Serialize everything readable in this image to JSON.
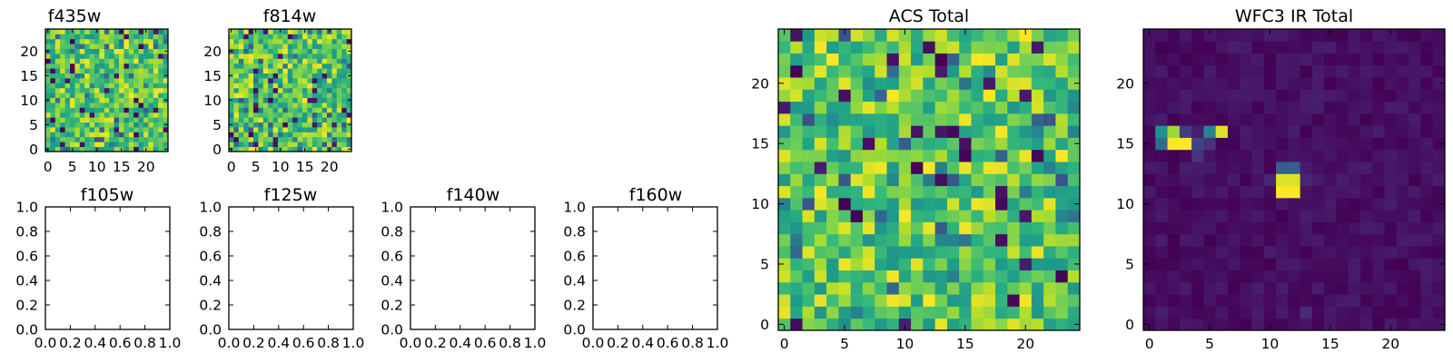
{
  "chart_data": [
    {
      "id": "f435w",
      "type": "heatmap",
      "title": "f435w",
      "grid": [
        25,
        25
      ],
      "xlim": [
        -0.5,
        24.5
      ],
      "ylim": [
        -0.5,
        24.5
      ],
      "xticks": [
        0,
        5,
        10,
        15,
        20
      ],
      "yticks": [
        0,
        5,
        10,
        15,
        20
      ],
      "colormap": "viridis",
      "pattern": "noise",
      "seed": 11
    },
    {
      "id": "f814w",
      "type": "heatmap",
      "title": "f814w",
      "grid": [
        25,
        25
      ],
      "xlim": [
        -0.5,
        24.5
      ],
      "ylim": [
        -0.5,
        24.5
      ],
      "xticks": [
        0,
        5,
        10,
        15,
        20
      ],
      "yticks": [
        0,
        5,
        10,
        15,
        20
      ],
      "colormap": "viridis",
      "pattern": "noise",
      "seed": 23
    },
    {
      "id": "f105w",
      "type": "empty",
      "title": "f105w",
      "xlim": [
        0,
        1
      ],
      "ylim": [
        0,
        1
      ],
      "xticks": [
        "0.0",
        "0.2",
        "0.4",
        "0.6",
        "0.8",
        "1.0"
      ],
      "yticks": [
        "0.0",
        "0.2",
        "0.4",
        "0.6",
        "0.8",
        "1.0"
      ]
    },
    {
      "id": "f125w",
      "type": "empty",
      "title": "f125w",
      "xlim": [
        0,
        1
      ],
      "ylim": [
        0,
        1
      ],
      "xticks": [
        "0.0",
        "0.2",
        "0.4",
        "0.6",
        "0.8",
        "1.0"
      ],
      "yticks": [
        "0.0",
        "0.2",
        "0.4",
        "0.6",
        "0.8",
        "1.0"
      ]
    },
    {
      "id": "f140w",
      "type": "empty",
      "title": "f140w",
      "xlim": [
        0,
        1
      ],
      "ylim": [
        0,
        1
      ],
      "xticks": [
        "0.0",
        "0.2",
        "0.4",
        "0.6",
        "0.8",
        "1.0"
      ],
      "yticks": [
        "0.0",
        "0.2",
        "0.4",
        "0.6",
        "0.8",
        "1.0"
      ]
    },
    {
      "id": "f160w",
      "type": "empty",
      "title": "f160w",
      "xlim": [
        0,
        1
      ],
      "ylim": [
        0,
        1
      ],
      "xticks": [
        "0.0",
        "0.2",
        "0.4",
        "0.6",
        "0.8",
        "1.0"
      ],
      "yticks": [
        "0.0",
        "0.2",
        "0.4",
        "0.6",
        "0.8",
        "1.0"
      ]
    },
    {
      "id": "acs-total",
      "type": "heatmap",
      "title": "ACS Total",
      "grid": [
        25,
        25
      ],
      "xlim": [
        -0.5,
        24.5
      ],
      "ylim": [
        -0.5,
        24.5
      ],
      "xticks": [
        0,
        5,
        10,
        15,
        20
      ],
      "yticks": [
        0,
        5,
        10,
        15,
        20
      ],
      "colormap": "viridis",
      "pattern": "noise",
      "seed": 47
    },
    {
      "id": "wfc3-ir-total",
      "type": "heatmap",
      "title": "WFC3 IR Total",
      "grid": [
        25,
        25
      ],
      "xlim": [
        -0.5,
        24.5
      ],
      "ylim": [
        -0.5,
        24.5
      ],
      "xticks": [
        0,
        5,
        10,
        15,
        20
      ],
      "yticks": [
        0,
        5,
        10,
        15,
        20
      ],
      "colormap": "viridis",
      "pattern": "sources",
      "seed": 5,
      "background_range": [
        0.0,
        0.08
      ],
      "sources": [
        {
          "x": 2,
          "y": 15,
          "value": 1.0
        },
        {
          "x": 3,
          "y": 15,
          "value": 1.0
        },
        {
          "x": 2,
          "y": 16,
          "value": 0.85
        },
        {
          "x": 1,
          "y": 16,
          "value": 0.5
        },
        {
          "x": 1,
          "y": 15,
          "value": 0.35
        },
        {
          "x": 4,
          "y": 15,
          "value": 0.2
        },
        {
          "x": 4,
          "y": 14,
          "value": 0.15
        },
        {
          "x": 3,
          "y": 16,
          "value": 0.18
        },
        {
          "x": 5,
          "y": 16,
          "value": 0.45
        },
        {
          "x": 6,
          "y": 16,
          "value": 0.95
        },
        {
          "x": 5,
          "y": 15,
          "value": 0.15
        },
        {
          "x": 11,
          "y": 11,
          "value": 1.0
        },
        {
          "x": 12,
          "y": 11,
          "value": 1.0
        },
        {
          "x": 11,
          "y": 12,
          "value": 0.95
        },
        {
          "x": 12,
          "y": 12,
          "value": 0.95
        },
        {
          "x": 11,
          "y": 13,
          "value": 0.3
        },
        {
          "x": 12,
          "y": 13,
          "value": 0.3
        },
        {
          "x": 10,
          "y": 12,
          "value": 0.1
        },
        {
          "x": 13,
          "y": 12,
          "value": 0.1
        },
        {
          "x": 13,
          "y": 1,
          "value": 0.12
        }
      ]
    }
  ]
}
